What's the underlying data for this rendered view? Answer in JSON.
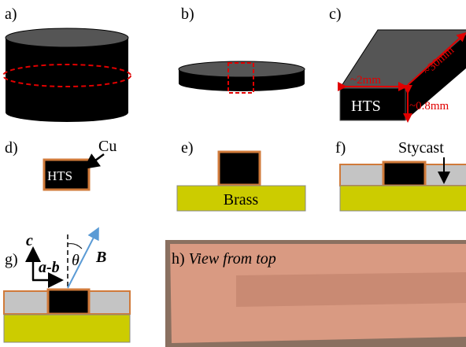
{
  "panels": [
    {
      "label": "a)"
    },
    {
      "label": "b)"
    },
    {
      "label": "c)",
      "length": "~30mm",
      "width": "~2mm",
      "material": "HTS",
      "thickness": "~0.8mm"
    },
    {
      "label": "d)",
      "material": "HTS",
      "coating": "Cu"
    },
    {
      "label": "e)",
      "substrate": "Brass"
    },
    {
      "label": "f)",
      "filler": "Stycast"
    },
    {
      "label": "g)",
      "axis_c": "c",
      "axis_ab": "a-b",
      "angle": "θ",
      "field": "B"
    },
    {
      "label": "h)",
      "caption": "View from top"
    }
  ]
}
